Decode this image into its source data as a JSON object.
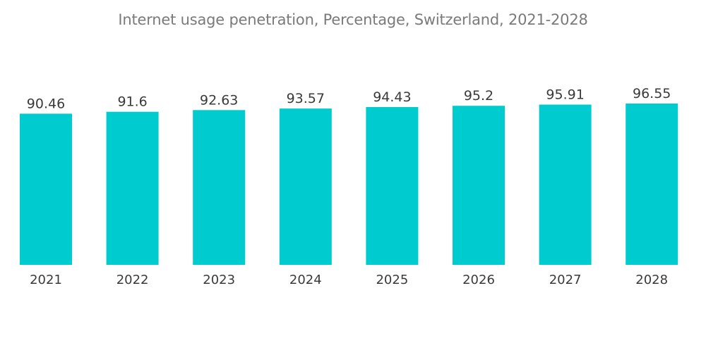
{
  "chart_data": {
    "type": "bar",
    "title": "Internet usage penetration, Percentage, Switzerland, 2021-2028",
    "xlabel": "",
    "ylabel": "",
    "categories": [
      "2021",
      "2022",
      "2023",
      "2024",
      "2025",
      "2026",
      "2027",
      "2028"
    ],
    "values": [
      90.46,
      91.6,
      92.63,
      93.57,
      94.43,
      95.2,
      95.91,
      96.55
    ],
    "value_labels": [
      "90.46",
      "91.6",
      "92.63",
      "93.57",
      "94.43",
      "95.2",
      "95.91",
      "96.55"
    ],
    "ylim": [
      0,
      96.55
    ],
    "grid": false,
    "legend": "none",
    "bar_color": "#00CCD0"
  }
}
